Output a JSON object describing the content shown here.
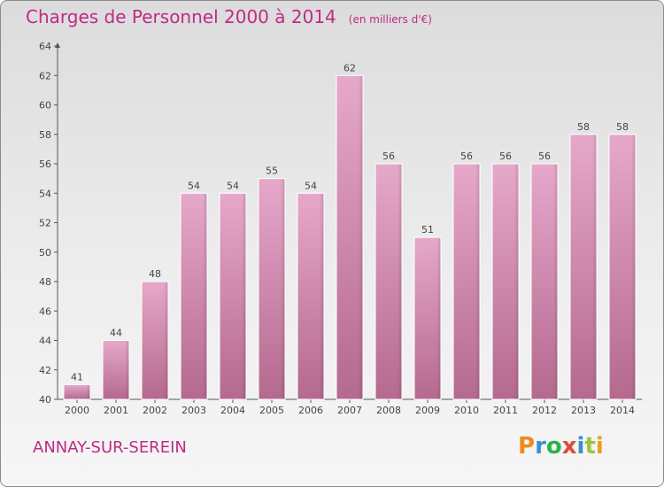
{
  "chart_data": {
    "type": "bar",
    "title": "Charges de Personnel 2000 à 2014",
    "subtitle": "(en milliers d'€)",
    "categories": [
      "2000",
      "2001",
      "2002",
      "2003",
      "2004",
      "2005",
      "2006",
      "2007",
      "2008",
      "2009",
      "2010",
      "2011",
      "2012",
      "2013",
      "2014"
    ],
    "values": [
      41,
      44,
      48,
      54,
      54,
      55,
      54,
      62,
      56,
      51,
      56,
      56,
      56,
      58,
      58
    ],
    "ylim": [
      40,
      64
    ],
    "yticks": [
      40,
      42,
      44,
      46,
      48,
      50,
      52,
      54,
      56,
      58,
      60,
      62,
      64
    ],
    "grid": false,
    "bar_color": "#c774a4"
  },
  "footer": {
    "commune": "ANNAY-SUR-SEREIN",
    "logo": "Proxiti",
    "logo_colors": [
      "#f08a1c",
      "#3a8fd0",
      "#2bb34a",
      "#e24a3b",
      "#3a8fd0",
      "#9bc53d",
      "#e8a01e"
    ]
  }
}
